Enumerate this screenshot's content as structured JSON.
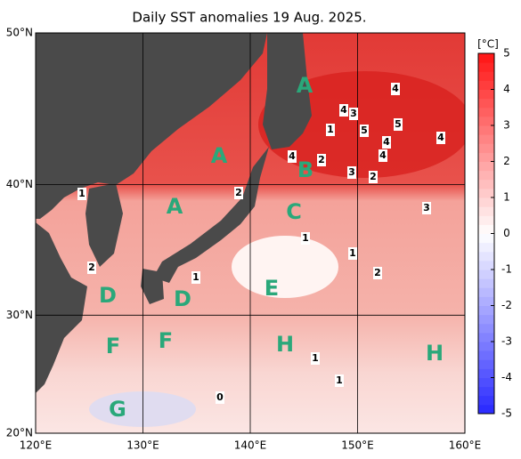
{
  "title": "Daily SST anomalies 19 Aug. 2025.",
  "lon_ticks": [
    {
      "value": 120,
      "label": "120°E"
    },
    {
      "value": 130,
      "label": "130°E"
    },
    {
      "value": 140,
      "label": "140°E"
    },
    {
      "value": 150,
      "label": "150°E"
    },
    {
      "value": 160,
      "label": "160°E"
    }
  ],
  "lat_ticks": [
    {
      "value": 20,
      "label": "20°N"
    },
    {
      "value": 30,
      "label": "30°N"
    },
    {
      "value": 40,
      "label": "40°N"
    },
    {
      "value": 50,
      "label": "50°N"
    }
  ],
  "colorbar": {
    "unit": "[°C]",
    "ticks": [
      -5,
      -4,
      -3,
      -2,
      -1,
      0,
      1,
      2,
      3,
      4,
      5
    ]
  },
  "regions": [
    "A",
    "A",
    "A",
    "B",
    "C",
    "D",
    "D",
    "E",
    "F",
    "F",
    "G",
    "H",
    "H"
  ],
  "contour_labels": [
    4,
    4,
    3,
    1,
    5,
    5,
    4,
    4,
    4,
    4,
    2,
    3,
    2,
    3,
    1,
    2,
    1,
    1,
    2,
    2,
    1,
    1,
    1,
    0
  ]
}
